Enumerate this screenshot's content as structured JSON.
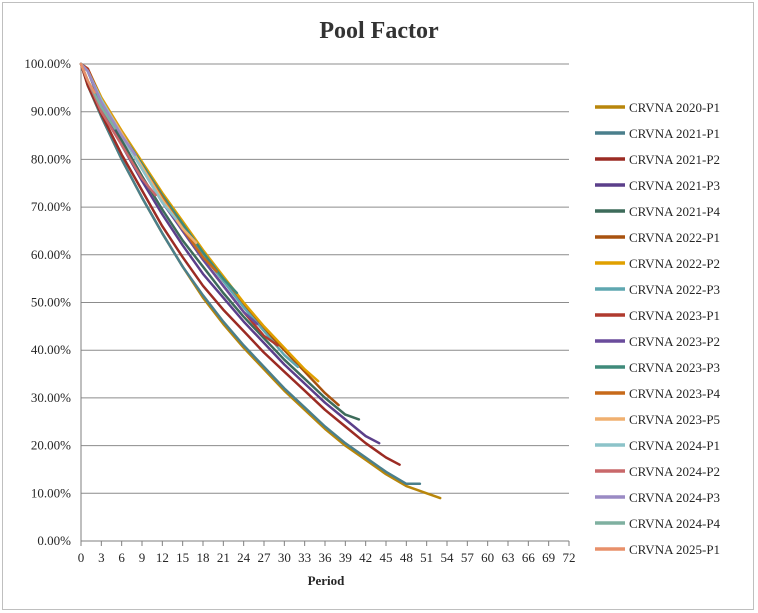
{
  "chart_data": {
    "type": "line",
    "title": "Pool Factor",
    "xlabel": "Period",
    "ylabel": "",
    "xlim": [
      0,
      72
    ],
    "ylim": [
      0,
      1
    ],
    "x_ticks": [
      0,
      3,
      6,
      9,
      12,
      15,
      18,
      21,
      24,
      27,
      30,
      33,
      36,
      39,
      42,
      45,
      48,
      51,
      54,
      57,
      60,
      63,
      66,
      69,
      72
    ],
    "y_ticks": [
      "0.00%",
      "10.00%",
      "20.00%",
      "30.00%",
      "40.00%",
      "50.00%",
      "60.00%",
      "70.00%",
      "80.00%",
      "90.00%",
      "100.00%"
    ],
    "y_tick_values": [
      0,
      0.1,
      0.2,
      0.3,
      0.4,
      0.5,
      0.6,
      0.7,
      0.8,
      0.9,
      1.0
    ],
    "grid": "horizontal",
    "legend_position": "right",
    "series": [
      {
        "name": "CRVNA 2020-P1",
        "color": "#B8860B",
        "x": [
          0,
          1,
          3,
          6,
          9,
          12,
          15,
          18,
          21,
          24,
          27,
          30,
          33,
          36,
          39,
          42,
          45,
          48,
          51,
          53
        ],
        "values": [
          1.0,
          0.955,
          0.89,
          0.8,
          0.72,
          0.645,
          0.575,
          0.51,
          0.455,
          0.405,
          0.36,
          0.315,
          0.275,
          0.235,
          0.2,
          0.17,
          0.14,
          0.115,
          0.1,
          0.09
        ]
      },
      {
        "name": "CRVNA 2021-P1",
        "color": "#4A7F8C",
        "x": [
          0,
          1,
          3,
          6,
          9,
          12,
          15,
          18,
          21,
          24,
          27,
          30,
          33,
          36,
          39,
          42,
          45,
          48,
          50
        ],
        "values": [
          1.0,
          0.955,
          0.89,
          0.8,
          0.72,
          0.645,
          0.575,
          0.515,
          0.46,
          0.41,
          0.365,
          0.32,
          0.28,
          0.24,
          0.205,
          0.175,
          0.145,
          0.12,
          0.12
        ]
      },
      {
        "name": "CRVNA 2021-P2",
        "color": "#9B2B23",
        "x": [
          0,
          1,
          3,
          6,
          9,
          12,
          15,
          18,
          21,
          24,
          27,
          30,
          33,
          36,
          39,
          42,
          45,
          47
        ],
        "values": [
          1.0,
          0.955,
          0.895,
          0.81,
          0.735,
          0.66,
          0.595,
          0.535,
          0.485,
          0.44,
          0.395,
          0.355,
          0.315,
          0.275,
          0.24,
          0.205,
          0.175,
          0.16
        ]
      },
      {
        "name": "CRVNA 2021-P3",
        "color": "#5B3F8A",
        "x": [
          0,
          1,
          3,
          6,
          9,
          12,
          15,
          18,
          21,
          24,
          27,
          30,
          33,
          36,
          39,
          42,
          44
        ],
        "values": [
          1.0,
          0.99,
          0.91,
          0.83,
          0.755,
          0.685,
          0.62,
          0.56,
          0.51,
          0.46,
          0.415,
          0.37,
          0.33,
          0.29,
          0.255,
          0.22,
          0.205
        ]
      },
      {
        "name": "CRVNA 2021-P4",
        "color": "#3D6B5A",
        "x": [
          0,
          1,
          3,
          6,
          9,
          12,
          15,
          18,
          21,
          24,
          27,
          30,
          33,
          36,
          39,
          41
        ],
        "values": [
          1.0,
          0.985,
          0.915,
          0.84,
          0.765,
          0.695,
          0.63,
          0.575,
          0.52,
          0.47,
          0.425,
          0.38,
          0.34,
          0.3,
          0.265,
          0.255
        ]
      },
      {
        "name": "CRVNA 2022-P1",
        "color": "#A8520F",
        "x": [
          0,
          1,
          3,
          6,
          9,
          12,
          15,
          18,
          21,
          24,
          27,
          30,
          33,
          36,
          38
        ],
        "values": [
          1.0,
          0.99,
          0.925,
          0.855,
          0.785,
          0.72,
          0.66,
          0.6,
          0.545,
          0.495,
          0.445,
          0.4,
          0.355,
          0.31,
          0.285
        ]
      },
      {
        "name": "CRVNA 2022-P2",
        "color": "#E0A000",
        "x": [
          0,
          1,
          3,
          6,
          9,
          12,
          15,
          18,
          21,
          24,
          27,
          30,
          33,
          35
        ],
        "values": [
          1.0,
          0.99,
          0.93,
          0.86,
          0.795,
          0.73,
          0.67,
          0.61,
          0.555,
          0.5,
          0.45,
          0.405,
          0.36,
          0.335
        ]
      },
      {
        "name": "CRVNA 2022-P3",
        "color": "#5FA7B0",
        "x": [
          0,
          1,
          3,
          6,
          9,
          12,
          15,
          18,
          21,
          24,
          27,
          30,
          32
        ],
        "values": [
          1.0,
          0.985,
          0.925,
          0.855,
          0.785,
          0.72,
          0.66,
          0.6,
          0.545,
          0.49,
          0.44,
          0.39,
          0.365
        ]
      },
      {
        "name": "CRVNA 2023-P1",
        "color": "#B03A2E",
        "x": [
          0,
          1,
          3,
          6,
          9,
          12,
          15,
          18,
          21,
          24,
          27,
          29
        ],
        "values": [
          1.0,
          0.99,
          0.925,
          0.855,
          0.785,
          0.715,
          0.65,
          0.59,
          0.535,
          0.48,
          0.43,
          0.41
        ]
      },
      {
        "name": "CRVNA 2023-P2",
        "color": "#6A4C9C",
        "x": [
          0,
          1,
          3,
          6,
          9,
          12,
          15,
          18,
          21,
          24,
          26
        ],
        "values": [
          1.0,
          0.985,
          0.92,
          0.85,
          0.78,
          0.71,
          0.65,
          0.59,
          0.535,
          0.48,
          0.455
        ]
      },
      {
        "name": "CRVNA 2023-P3",
        "color": "#3F8A7A",
        "x": [
          0,
          1,
          3,
          6,
          9,
          12,
          15,
          18,
          21,
          23
        ],
        "values": [
          1.0,
          0.985,
          0.925,
          0.855,
          0.79,
          0.725,
          0.665,
          0.605,
          0.55,
          0.52
        ]
      },
      {
        "name": "CRVNA 2023-P4",
        "color": "#C76A1A",
        "x": [
          0,
          1,
          3,
          6,
          9,
          12,
          15,
          18,
          20
        ],
        "values": [
          1.0,
          0.985,
          0.925,
          0.855,
          0.785,
          0.72,
          0.655,
          0.595,
          0.565
        ]
      },
      {
        "name": "CRVNA 2023-P5",
        "color": "#F0B070",
        "x": [
          0,
          1,
          3,
          6,
          9,
          12,
          15,
          17
        ],
        "values": [
          1.0,
          0.985,
          0.925,
          0.855,
          0.785,
          0.715,
          0.655,
          0.625
        ]
      },
      {
        "name": "CRVNA 2024-P1",
        "color": "#8CC3C9",
        "x": [
          0,
          1,
          3,
          6,
          9,
          12,
          14
        ],
        "values": [
          1.0,
          0.985,
          0.925,
          0.85,
          0.78,
          0.71,
          0.675
        ]
      },
      {
        "name": "CRVNA 2024-P2",
        "color": "#C9686A",
        "x": [
          0,
          1,
          3,
          6,
          9,
          11
        ],
        "values": [
          1.0,
          0.965,
          0.9,
          0.83,
          0.76,
          0.725
        ]
      },
      {
        "name": "CRVNA 2024-P3",
        "color": "#9A8AC4",
        "x": [
          0,
          1,
          3,
          6,
          8
        ],
        "values": [
          1.0,
          0.985,
          0.92,
          0.85,
          0.81
        ]
      },
      {
        "name": "CRVNA 2024-P4",
        "color": "#7FB0A0",
        "x": [
          0,
          1,
          3,
          5
        ],
        "values": [
          1.0,
          0.965,
          0.91,
          0.865
        ]
      },
      {
        "name": "CRVNA 2025-P1",
        "color": "#E8906A",
        "x": [
          0,
          1,
          2
        ],
        "values": [
          1.0,
          0.965,
          0.94
        ]
      }
    ]
  }
}
